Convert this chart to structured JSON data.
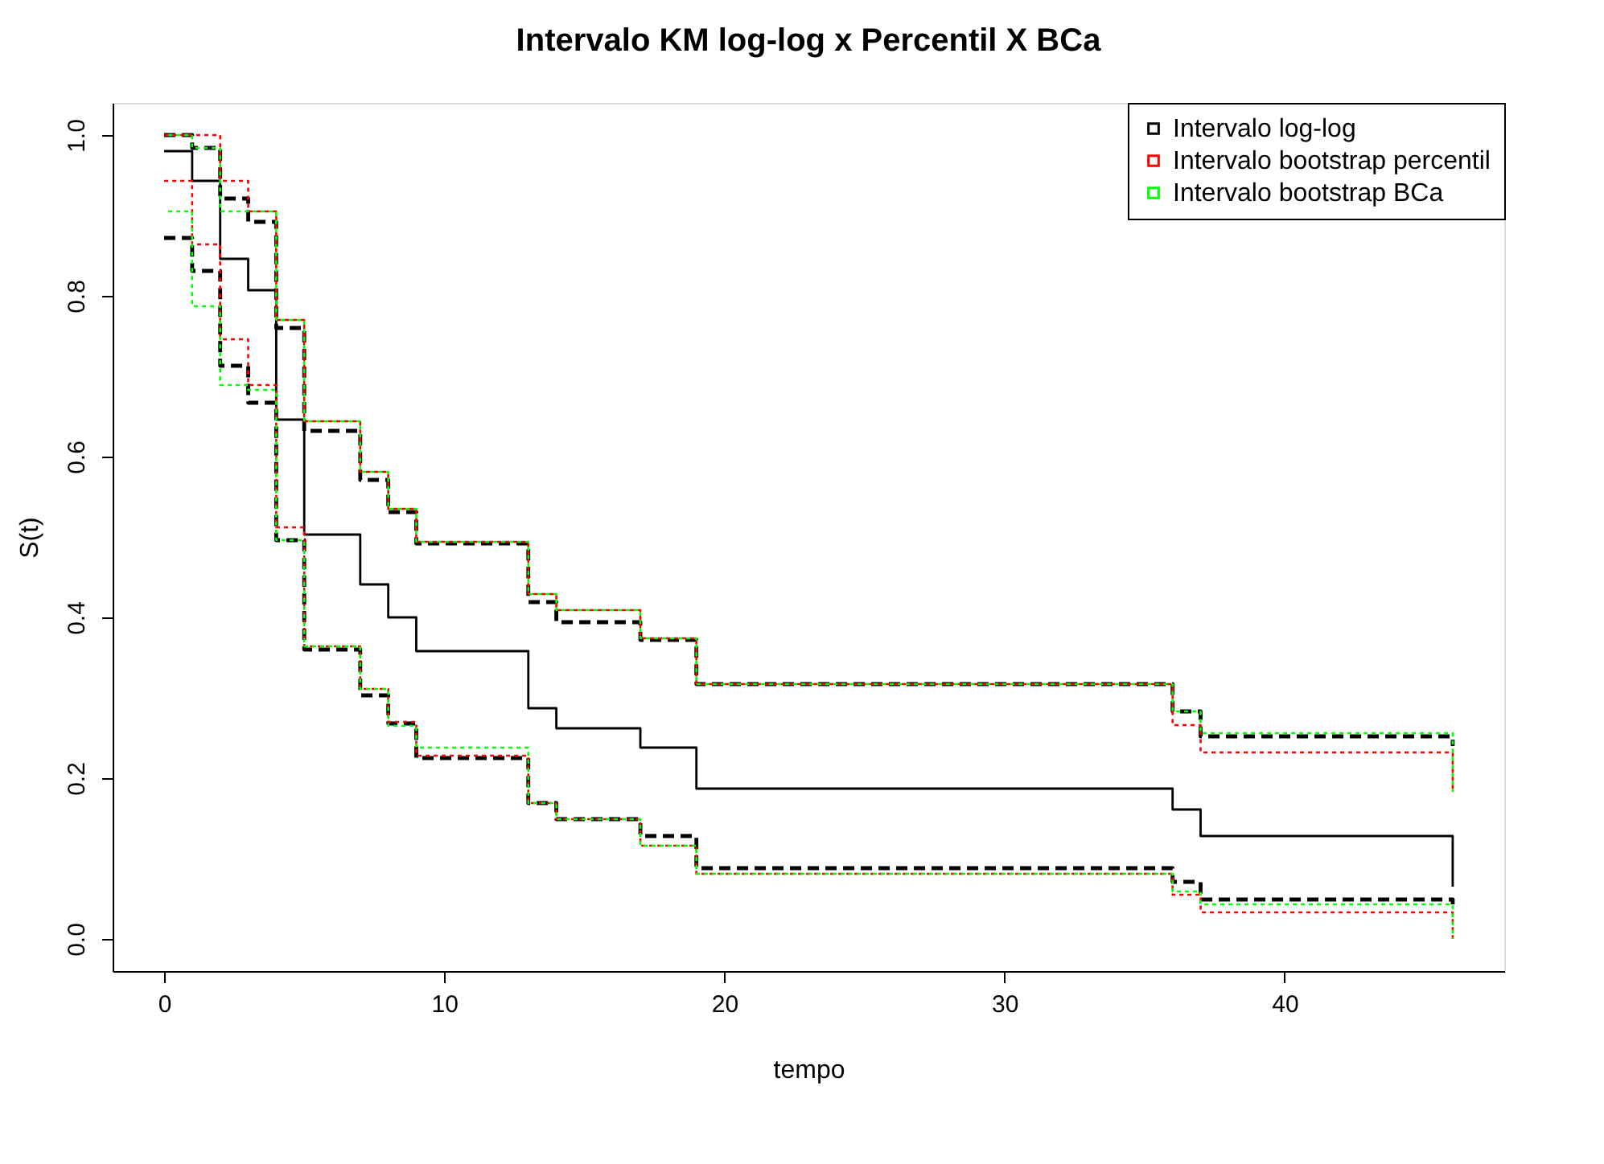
{
  "chart_data": {
    "type": "step",
    "title": "Intervalo KM log-log x Percentil X BCa",
    "xlabel": "tempo",
    "ylabel": "S(t)",
    "x": [
      0,
      1,
      2,
      3,
      4,
      5,
      7,
      8,
      9,
      13,
      14,
      17,
      19,
      36,
      37,
      46
    ],
    "series": [
      {
        "color": "#000000",
        "line_style": "solid",
        "values": [
          0.98,
          0.943,
          0.846,
          0.807,
          0.646,
          0.503,
          0.441,
          0.4,
          0.358,
          0.287,
          0.262,
          0.238,
          0.187,
          0.161,
          0.128,
          0.065
        ]
      },
      {
        "name": "Intervalo log-log",
        "color": "#000000",
        "line_style": "dashed",
        "values": [
          1.0,
          0.984,
          0.921,
          0.892,
          0.76,
          0.632,
          0.571,
          0.531,
          0.492,
          0.419,
          0.394,
          0.372,
          0.317,
          0.283,
          0.252,
          0.24
        ]
      },
      {
        "color": "#000000",
        "line_style": "dashed",
        "values": [
          0.872,
          0.831,
          0.713,
          0.667,
          0.496,
          0.36,
          0.303,
          0.268,
          0.225,
          0.169,
          0.149,
          0.128,
          0.088,
          0.071,
          0.049,
          0.043
        ]
      },
      {
        "name": "Intervalo bootstrap percentil",
        "color": "#ff0000",
        "line_style": "dotted",
        "values": [
          1.0,
          1.0,
          0.943,
          0.905,
          0.77,
          0.644,
          0.581,
          0.535,
          0.494,
          0.429,
          0.409,
          0.374,
          0.317,
          0.266,
          0.232,
          0.183
        ]
      },
      {
        "color": "#ff0000",
        "line_style": "dotted",
        "values": [
          0.943,
          0.864,
          0.746,
          0.689,
          0.512,
          0.364,
          0.311,
          0.27,
          0.228,
          0.169,
          0.149,
          0.116,
          0.081,
          0.055,
          0.033,
          0.0
        ]
      },
      {
        "name": "Intervalo bootstrap BCa",
        "color": "#00ff00",
        "line_style": "dotted",
        "values": [
          1.0,
          0.984,
          0.905,
          0.905,
          0.77,
          0.644,
          0.581,
          0.535,
          0.494,
          0.429,
          0.409,
          0.374,
          0.317,
          0.283,
          0.256,
          0.183
        ]
      },
      {
        "color": "#00ff00",
        "line_style": "dotted",
        "values": [
          0.905,
          0.787,
          0.689,
          0.683,
          0.496,
          0.364,
          0.311,
          0.265,
          0.238,
          0.169,
          0.149,
          0.116,
          0.081,
          0.059,
          0.043,
          0.0
        ]
      }
    ],
    "xlim": [
      -1.84,
      47.84
    ],
    "ylim": [
      -0.04,
      1.04
    ],
    "xticks": [
      0,
      10,
      20,
      30,
      40
    ],
    "yticks": [
      {
        "value": 0,
        "label": "0.0"
      },
      {
        "value": 0.2,
        "label": "0.2"
      },
      {
        "value": 0.4,
        "label": "0.4"
      },
      {
        "value": 0.6,
        "label": "0.6"
      },
      {
        "value": 0.8,
        "label": "0.8"
      },
      {
        "value": 1,
        "label": "1.0"
      }
    ],
    "grid": false,
    "legend": "top right"
  }
}
